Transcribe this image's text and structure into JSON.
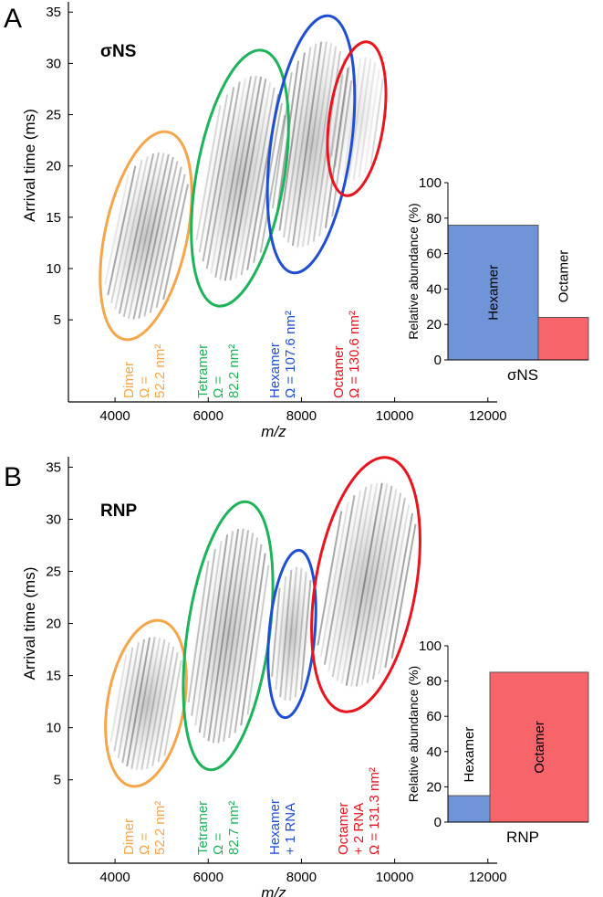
{
  "chart_data": [
    {
      "type": "heatmap",
      "panel": "A",
      "title": "σNS",
      "xlabel": "m/z",
      "ylabel": "Arrival time (ms)",
      "xlim": [
        3000,
        12200
      ],
      "ylim": [
        -3,
        36
      ],
      "xticks": [
        4000,
        6000,
        8000,
        10000,
        12000
      ],
      "yticks": [
        5,
        10,
        15,
        20,
        25,
        30,
        35
      ],
      "annotations": [
        {
          "lines": [
            "Dimer",
            "Ω =",
            "52.2 nm²"
          ],
          "color": "#f5a54a"
        },
        {
          "lines": [
            "Tetramer",
            "Ω =",
            "82.2 nm²"
          ],
          "color": "#1db35a"
        },
        {
          "lines": [
            "Hexamer",
            "Ω = 107.6 nm²"
          ],
          "color": "#1f4fd1"
        },
        {
          "lines": [
            "Octamer",
            "Ω = 130.6 nm²"
          ],
          "color": "#e8141e"
        }
      ]
    },
    {
      "type": "bar",
      "xlabel": "σNS",
      "ylabel": "Relative abundance (%)",
      "categories": [
        "Hexamer",
        "Octamer"
      ],
      "values": [
        76,
        24
      ],
      "colors": [
        "#6f94d8",
        "#f7656a"
      ],
      "ylim": [
        0,
        100
      ],
      "yticks": [
        0,
        20,
        40,
        60,
        80,
        100
      ]
    },
    {
      "type": "heatmap",
      "panel": "B",
      "title": "RNP",
      "xlabel": "m/z",
      "ylabel": "Arrival time (ms)",
      "xlim": [
        3000,
        12200
      ],
      "ylim": [
        -3,
        36
      ],
      "xticks": [
        4000,
        6000,
        8000,
        10000,
        12000
      ],
      "yticks": [
        5,
        10,
        15,
        20,
        25,
        30,
        35
      ],
      "annotations": [
        {
          "lines": [
            "Dimer",
            "Ω =",
            "52.2 nm²"
          ],
          "color": "#f5a54a"
        },
        {
          "lines": [
            "Tetramer",
            "Ω =",
            "82.7 nm²"
          ],
          "color": "#1db35a"
        },
        {
          "lines": [
            "Hexamer",
            "+ 1 RNA"
          ],
          "color": "#1f4fd1"
        },
        {
          "lines": [
            "Octamer",
            "+ 2 RNA",
            "Ω = 131.3 nm²"
          ],
          "color": "#e8141e"
        }
      ]
    },
    {
      "type": "bar",
      "xlabel": "RNP",
      "ylabel": "Relative abundance (%)",
      "categories": [
        "Hexamer",
        "Octamer"
      ],
      "values": [
        15,
        85
      ],
      "colors": [
        "#6f94d8",
        "#f7656a"
      ],
      "ylim": [
        0,
        100
      ],
      "yticks": [
        0,
        20,
        40,
        60,
        80,
        100
      ]
    }
  ]
}
